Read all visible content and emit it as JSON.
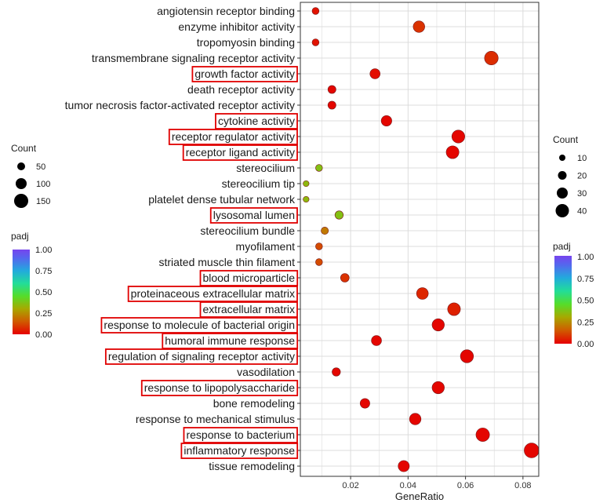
{
  "chart_data": {
    "type": "scatter",
    "xlabel": "GeneRatio",
    "xlim": [
      0.0025,
      0.0855
    ],
    "x_ticks": [
      0.02,
      0.04,
      0.06,
      0.08
    ],
    "x_tick_labels": [
      "0.02",
      "0.04",
      "0.06",
      "0.08"
    ],
    "grid": true,
    "terms": [
      {
        "label": "angiotensin receptor binding",
        "x": 0.0078,
        "count": 4,
        "padj": 0.03,
        "highlighted": false
      },
      {
        "label": "enzyme inhibitor activity",
        "x": 0.0438,
        "count": 22,
        "padj": 0.08,
        "highlighted": false
      },
      {
        "label": "tropomyosin binding",
        "x": 0.0078,
        "count": 4,
        "padj": 0.03,
        "highlighted": false
      },
      {
        "label": "transmembrane signaling receptor activity",
        "x": 0.069,
        "count": 35,
        "padj": 0.07,
        "highlighted": false
      },
      {
        "label": "growth factor activity",
        "x": 0.0285,
        "count": 15,
        "padj": 0.02,
        "highlighted": true
      },
      {
        "label": "death receptor activity",
        "x": 0.0135,
        "count": 7,
        "padj": 0.01,
        "highlighted": false
      },
      {
        "label": "tumor necrosis factor-activated receptor activity",
        "x": 0.0135,
        "count": 7,
        "padj": 0.01,
        "highlighted": false
      },
      {
        "label": "cytokine activity",
        "x": 0.0325,
        "count": 17,
        "padj": 0.01,
        "highlighted": true
      },
      {
        "label": "receptor regulator activity",
        "x": 0.0575,
        "count": 30,
        "padj": 0.01,
        "highlighted": true
      },
      {
        "label": "receptor ligand activity",
        "x": 0.0555,
        "count": 29,
        "padj": 0.01,
        "highlighted": true
      },
      {
        "label": "stereocilium",
        "x": 0.009,
        "count": 4,
        "padj": 0.35,
        "highlighted": false
      },
      {
        "label": "stereocilium tip",
        "x": 0.0045,
        "count": 2,
        "padj": 0.33,
        "highlighted": false
      },
      {
        "label": "platelet dense tubular network",
        "x": 0.0045,
        "count": 2,
        "padj": 0.33,
        "highlighted": false
      },
      {
        "label": "lysosomal lumen",
        "x": 0.016,
        "count": 8,
        "padj": 0.35,
        "highlighted": true
      },
      {
        "label": "stereocilium bundle",
        "x": 0.011,
        "count": 5,
        "padj": 0.2,
        "highlighted": false
      },
      {
        "label": "myofilament",
        "x": 0.009,
        "count": 4,
        "padj": 0.12,
        "highlighted": false
      },
      {
        "label": "striated muscle thin filament",
        "x": 0.009,
        "count": 4,
        "padj": 0.12,
        "highlighted": false
      },
      {
        "label": "blood microparticle",
        "x": 0.018,
        "count": 9,
        "padj": 0.08,
        "highlighted": true
      },
      {
        "label": "proteinaceous extracellular matrix",
        "x": 0.045,
        "count": 23,
        "padj": 0.06,
        "highlighted": true
      },
      {
        "label": "extracellular matrix",
        "x": 0.056,
        "count": 29,
        "padj": 0.05,
        "highlighted": true
      },
      {
        "label": "response to molecule of bacterial origin",
        "x": 0.0505,
        "count": 26,
        "padj": 0.01,
        "highlighted": true
      },
      {
        "label": "humoral immune response",
        "x": 0.029,
        "count": 15,
        "padj": 0.01,
        "highlighted": true
      },
      {
        "label": "regulation of signaling receptor activity",
        "x": 0.0605,
        "count": 31,
        "padj": 0.01,
        "highlighted": true
      },
      {
        "label": "vasodilation",
        "x": 0.015,
        "count": 8,
        "padj": 0.01,
        "highlighted": false
      },
      {
        "label": "response to lipopolysaccharide",
        "x": 0.0505,
        "count": 26,
        "padj": 0.01,
        "highlighted": true
      },
      {
        "label": "bone remodeling",
        "x": 0.025,
        "count": 13,
        "padj": 0.01,
        "highlighted": false
      },
      {
        "label": "response to mechanical stimulus",
        "x": 0.0425,
        "count": 22,
        "padj": 0.01,
        "highlighted": false
      },
      {
        "label": "response to bacterium",
        "x": 0.066,
        "count": 34,
        "padj": 0.01,
        "highlighted": true
      },
      {
        "label": "inflammatory response",
        "x": 0.083,
        "count": 43,
        "padj": 0.01,
        "highlighted": true
      },
      {
        "label": "tissue remodeling",
        "x": 0.0385,
        "count": 20,
        "padj": 0.01,
        "highlighted": false
      }
    ],
    "legends": {
      "left_count": {
        "title": "Count",
        "values": [
          50,
          100,
          150
        ]
      },
      "left_padj": {
        "title": "padj",
        "labels": [
          "1.00",
          "0.75",
          "0.50",
          "0.25",
          "0.00"
        ]
      },
      "right_count": {
        "title": "Count",
        "values": [
          10,
          20,
          30,
          40
        ]
      },
      "right_padj": {
        "title": "padj",
        "labels": [
          "1.00",
          "0.75",
          "0.50",
          "0.25",
          "0.00"
        ]
      }
    },
    "colors": {
      "highlight_box": "#e00000",
      "grid": "#dcdcdc",
      "panel_border": "#333333",
      "point_stroke": "#7a1a1a",
      "padj_gradient": [
        "#e60000",
        "#d05a00",
        "#a8a800",
        "#55dd2a",
        "#22dd99",
        "#22aadd",
        "#5566ee",
        "#7744ee"
      ]
    }
  }
}
